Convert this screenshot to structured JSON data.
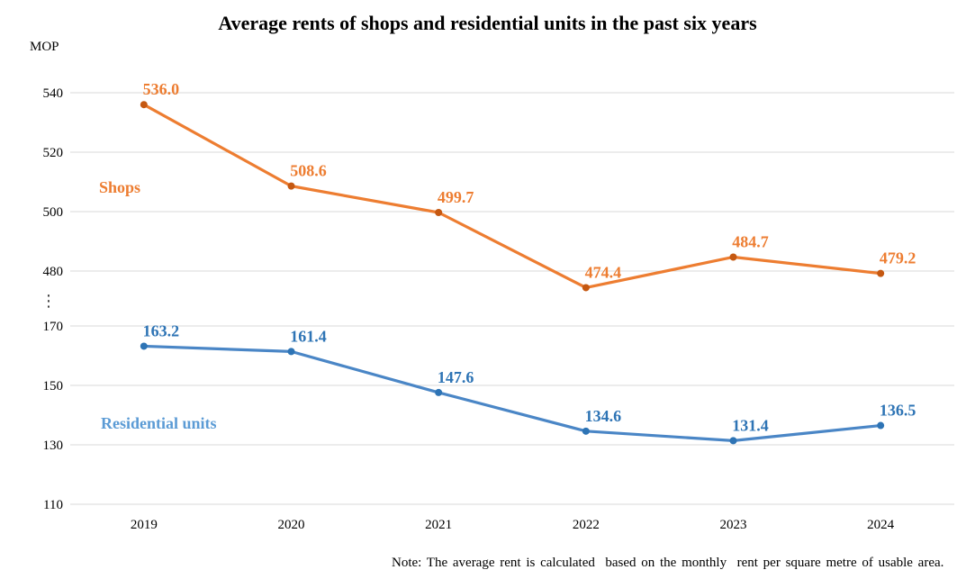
{
  "chart_data": {
    "type": "line",
    "title": "Average rents of shops and residential units in the past six years",
    "categories": [
      "2019",
      "2020",
      "2021",
      "2022",
      "2023",
      "2024"
    ],
    "series": [
      {
        "name": "Shops",
        "values": [
          536.0,
          508.6,
          499.7,
          474.4,
          484.7,
          479.2
        ],
        "labels": [
          "536.0",
          "508.6",
          "499.7",
          "474.4",
          "484.7",
          "479.2"
        ],
        "axis": "upper",
        "line_color": "#ED7D31",
        "marker_color": "#C55811",
        "label_color": "#ED7D31",
        "name_color": "#ED7D31"
      },
      {
        "name": "Residential units",
        "values": [
          163.2,
          161.4,
          147.6,
          134.6,
          131.4,
          136.5
        ],
        "labels": [
          "163.2",
          "161.4",
          "147.6",
          "134.6",
          "131.4",
          "136.5"
        ],
        "axis": "lower",
        "line_color": "#4A86C6",
        "marker_color": "#2E74B5",
        "label_color": "#2E74B5",
        "name_color": "#5B9BD5"
      }
    ],
    "y_axis": {
      "unit": "MOP",
      "upper_ticks": [
        540,
        520,
        500,
        480
      ],
      "lower_ticks": [
        170,
        150,
        130,
        110
      ],
      "break_symbol": "⋮",
      "broken_axis": true
    },
    "xlabel": "",
    "ylabel": "MOP",
    "grid": true,
    "legend_position": "inline-labels",
    "grid_color": "#D9D9D9",
    "tick_color": "#000000",
    "note": "Note: The average rent is calculated  based on the monthly  rent per square metre of usable area."
  }
}
